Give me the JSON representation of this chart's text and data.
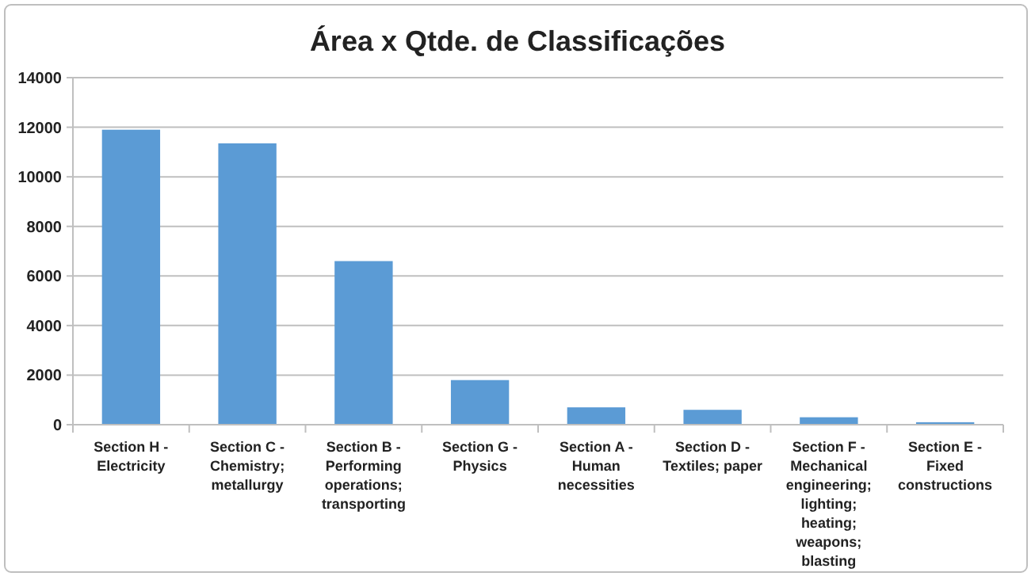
{
  "chart_data": {
    "type": "bar",
    "title": "Área x Qtde. de Classificações",
    "categories": [
      "Section H - Electricity",
      "Section C - Chemistry; metallurgy",
      "Section B - Performing operations; transporting",
      "Section G - Physics",
      "Section A - Human necessities",
      "Section D - Textiles; paper",
      "Section F - Mechanical engineering; lighting; heating; weapons; blasting",
      "Section E - Fixed constructions"
    ],
    "values": [
      11900,
      11350,
      6600,
      1800,
      700,
      600,
      300,
      100
    ],
    "color": "#5b9bd5",
    "ylim": [
      0,
      14000
    ],
    "yticks": [
      0,
      2000,
      4000,
      6000,
      8000,
      10000,
      12000,
      14000
    ],
    "grid": "y"
  }
}
